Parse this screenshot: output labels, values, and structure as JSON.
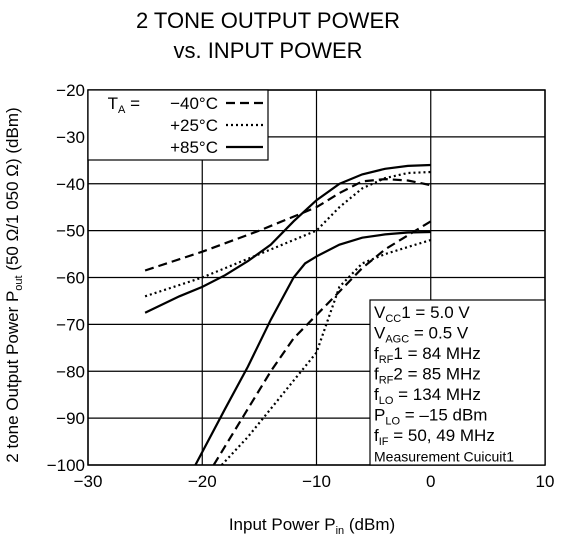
{
  "chart_data": {
    "type": "line",
    "title": [
      "2 TONE OUTPUT POWER",
      "vs. INPUT POWER"
    ],
    "xlabel": {
      "text": "Input Power  P",
      "sub": "in",
      "rest": " (dBm)"
    },
    "ylabel": {
      "text": "2 tone Output Power  P",
      "sub": "out",
      "rest": " (50 Ω/1 050 Ω) (dBm)"
    },
    "legend_title": {
      "text": "T",
      "sub": "A",
      "rest": " ="
    },
    "legend": "upper left",
    "grid": true,
    "xlim": [
      -30,
      10
    ],
    "xticks": [
      {
        "value": -30,
        "label": "−30"
      },
      {
        "value": -20,
        "label": "−20"
      },
      {
        "value": -10,
        "label": "−10"
      },
      0,
      10
    ],
    "ylim": [
      -100,
      -20
    ],
    "yticks": [
      {
        "value": -20,
        "label": "−20"
      },
      {
        "value": -30,
        "label": "−30"
      },
      {
        "value": -40,
        "label": "−40"
      },
      {
        "value": -50,
        "label": "−50"
      },
      {
        "value": -60,
        "label": "−60"
      },
      {
        "value": -70,
        "label": "−70"
      },
      {
        "value": -80,
        "label": "−80"
      },
      {
        "value": -90,
        "label": "−90"
      },
      {
        "value": -100,
        "label": "−100"
      }
    ],
    "series": [
      {
        "name": "−40°C",
        "color": "#000000",
        "dash": "dashed",
        "x": [
          -25,
          -20,
          -15,
          -10,
          -8,
          -6,
          -4,
          -2,
          0
        ],
        "values": [
          -58.5,
          -54.5,
          -50,
          -45,
          -42,
          -39.5,
          -39,
          -39.3,
          -40.3
        ]
      },
      {
        "name": "+25°C",
        "color": "#000000",
        "dash": "dotted",
        "x": [
          -25,
          -20,
          -15,
          -10,
          -8,
          -6,
          -4,
          -2,
          0
        ],
        "values": [
          -64,
          -60,
          -55,
          -50,
          -45,
          -41,
          -38.8,
          -37.7,
          -37.5
        ]
      },
      {
        "name": "+85°C",
        "color": "#000000",
        "dash": "solid",
        "x": [
          -25,
          -22,
          -20,
          -18,
          -16,
          -14,
          -12,
          -10,
          -8,
          -6,
          -4,
          -2,
          0
        ],
        "values": [
          -67.5,
          -64,
          -62,
          -59.5,
          -56.5,
          -53,
          -48,
          -43.5,
          -40,
          -38,
          -36.8,
          -36.2,
          -36
        ]
      },
      {
        "color": "#000000",
        "dash": "dashed",
        "x": [
          -19,
          -16,
          -14,
          -12,
          -10,
          -8,
          -6,
          -4,
          -2,
          0
        ],
        "values": [
          -100,
          -88,
          -80,
          -73,
          -68,
          -63,
          -58,
          -54,
          -51,
          -48
        ]
      },
      {
        "color": "#000000",
        "dash": "dotted",
        "x": [
          -18.3,
          -16,
          -14,
          -12,
          -10,
          -8,
          -6,
          -4,
          -2,
          0
        ],
        "values": [
          -100,
          -94,
          -88,
          -82,
          -76,
          -62,
          -57,
          -55,
          -53.5,
          -52
        ]
      },
      {
        "color": "#000000",
        "dash": "solid",
        "x": [
          -20.6,
          -18,
          -16,
          -14,
          -12,
          -11,
          -10,
          -8,
          -6,
          -4,
          -2,
          0
        ],
        "values": [
          -100,
          -88,
          -79,
          -69,
          -60,
          -57,
          -55.5,
          -53,
          -51.5,
          -50.8,
          -50.4,
          -50.3
        ]
      }
    ],
    "annotations": [
      {
        "text": "V",
        "sub": "CC",
        "rest": "1 = 5.0 V"
      },
      {
        "text": "V",
        "sub": "AGC",
        "rest": " = 0.5 V"
      },
      {
        "text": "f",
        "sub": "RF",
        "rest": "1 = 84 MHz"
      },
      {
        "text": "f",
        "sub": "RF",
        "rest": "2 = 85 MHz"
      },
      {
        "text": "f",
        "sub": "LO",
        "rest": " = 134 MHz"
      },
      {
        "text": "P",
        "sub": "LO",
        "rest": " = –15 dBm"
      },
      {
        "text": "f",
        "sub": "IF",
        "rest": " = 50, 49 MHz"
      },
      {
        "text": "Measurement Cuicuit1"
      }
    ]
  }
}
